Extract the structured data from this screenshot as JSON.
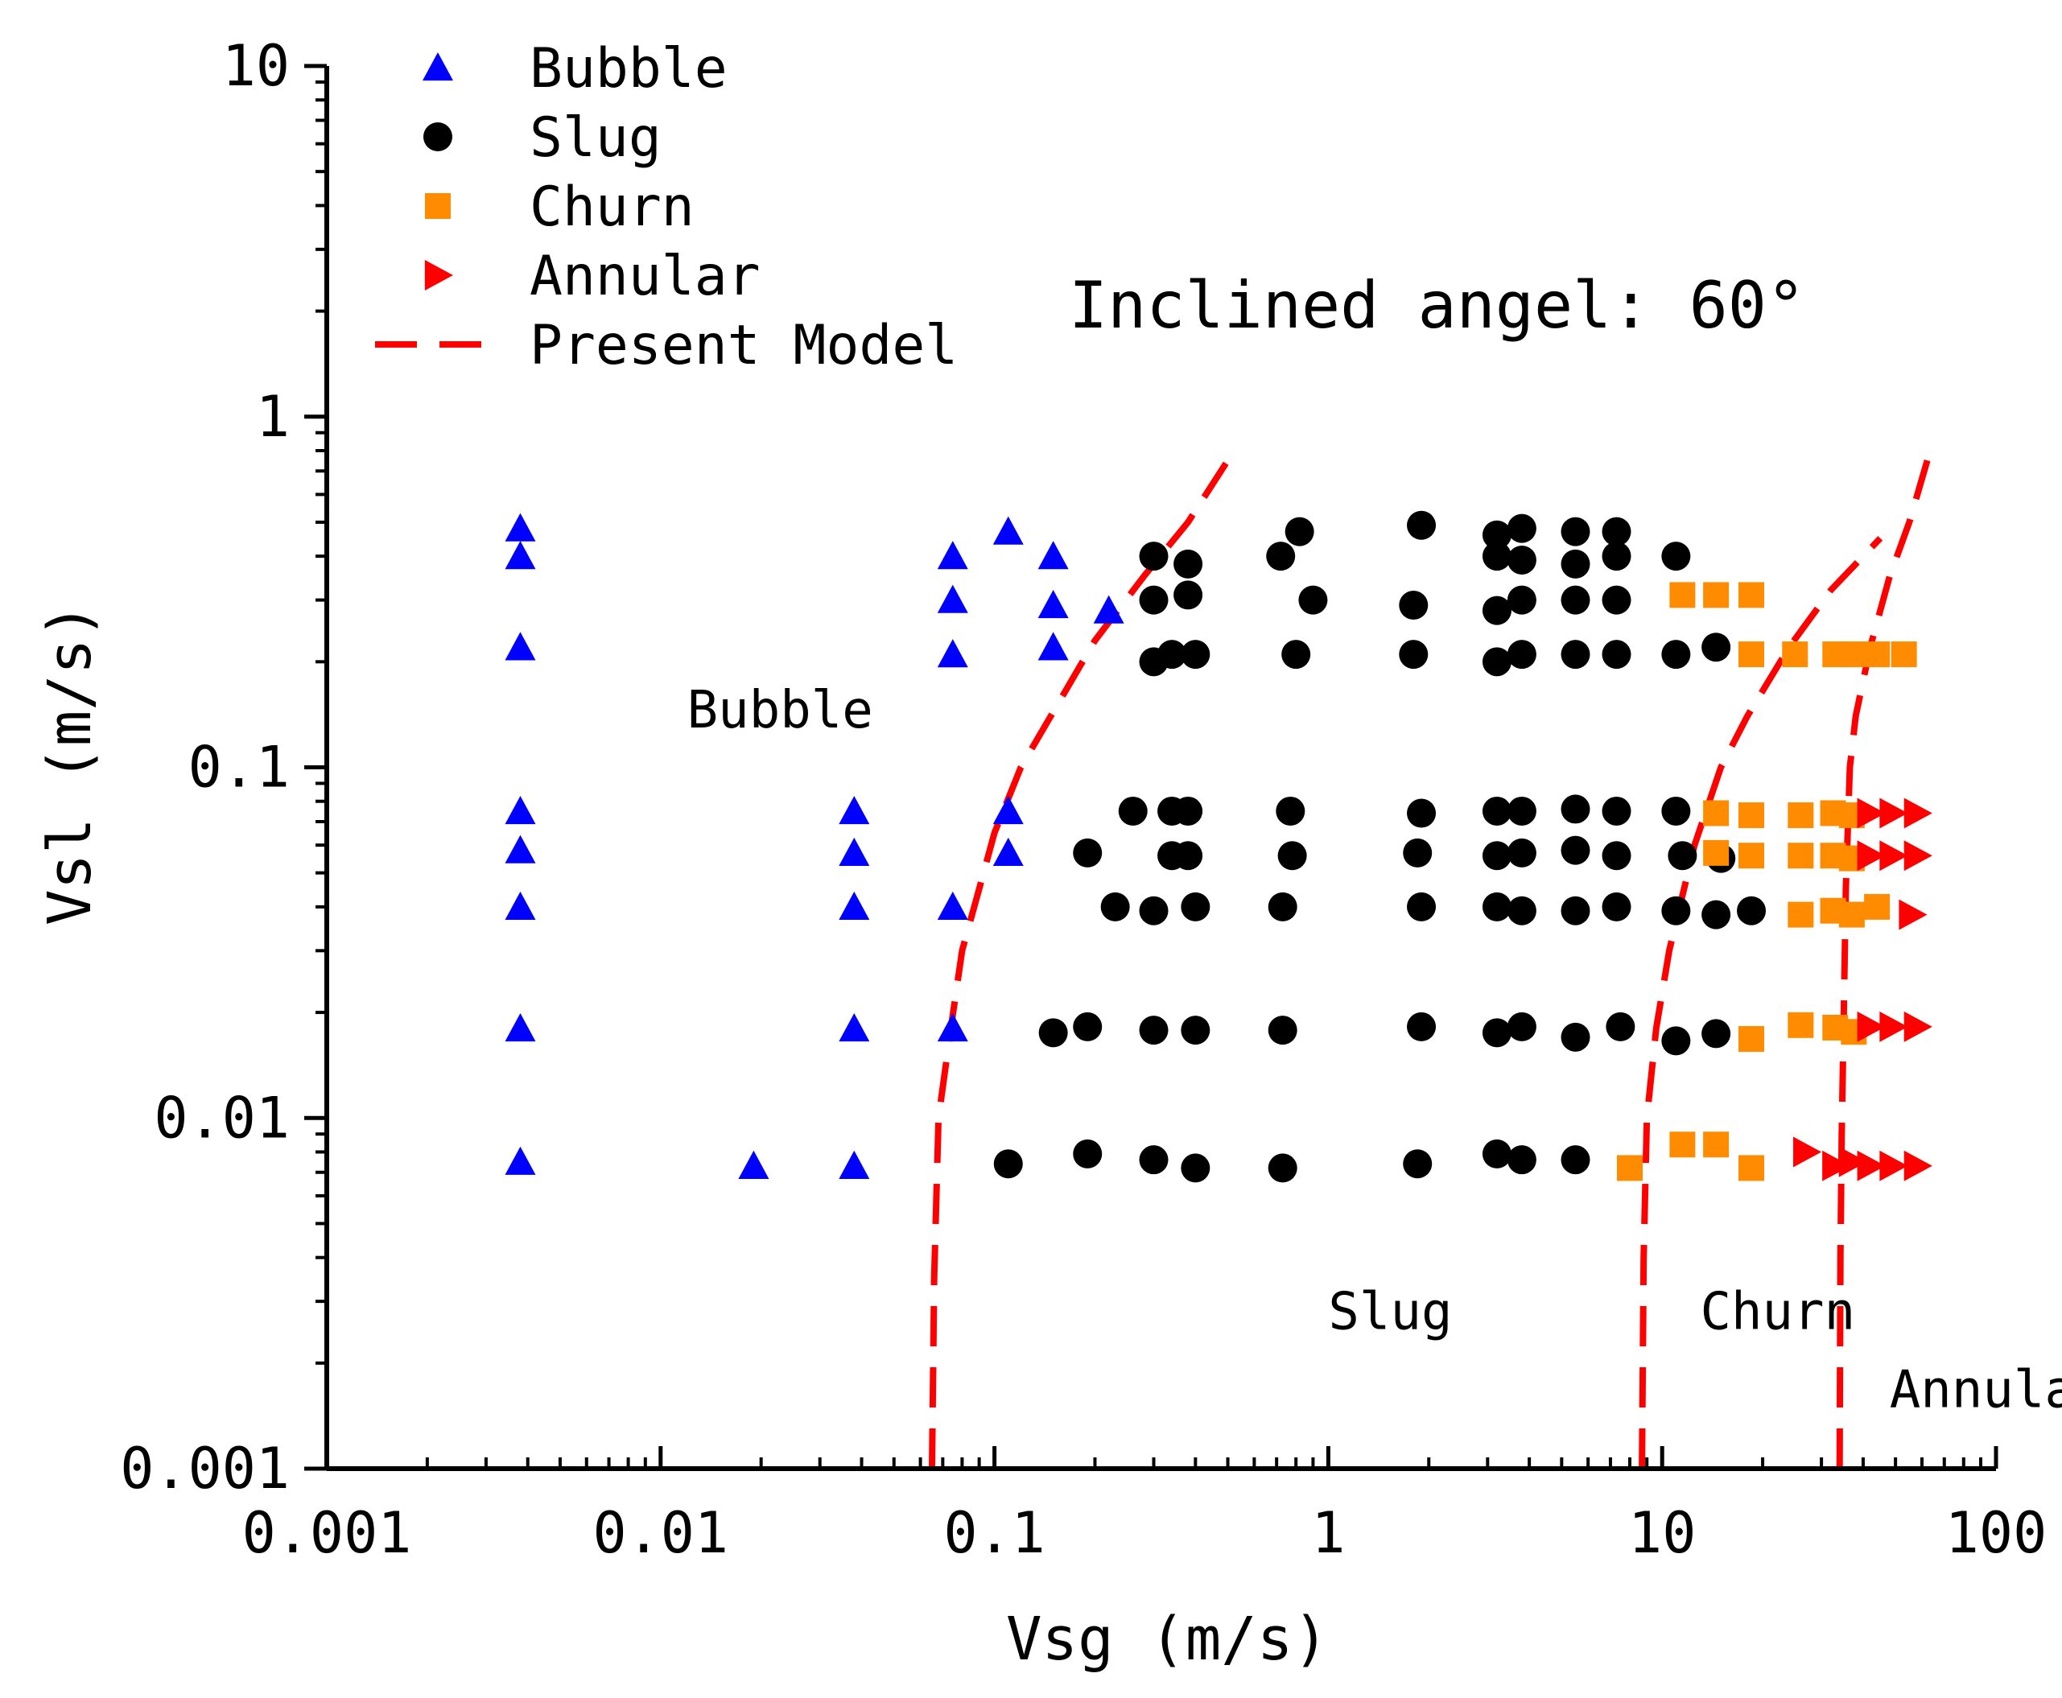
{
  "chart_data": {
    "type": "scatter",
    "title": "Inclined angel: 60°",
    "xlabel": "Vsg (m/s)",
    "ylabel": "Vsl (m/s)",
    "xscale": "log",
    "yscale": "log",
    "xlim": [
      0.001,
      100
    ],
    "ylim": [
      0.001,
      10
    ],
    "x_ticks": [
      {
        "value": 0.001,
        "label": "0.001"
      },
      {
        "value": 0.01,
        "label": "0.01"
      },
      {
        "value": 0.1,
        "label": "0.1"
      },
      {
        "value": 1,
        "label": "1"
      },
      {
        "value": 10,
        "label": "10"
      },
      {
        "value": 100,
        "label": "100"
      }
    ],
    "y_ticks": [
      {
        "value": 0.001,
        "label": "0.001"
      },
      {
        "value": 0.01,
        "label": "0.01"
      },
      {
        "value": 0.1,
        "label": "0.1"
      },
      {
        "value": 1,
        "label": "1"
      },
      {
        "value": 10,
        "label": "10"
      }
    ],
    "legend_position": "top-left",
    "series": [
      {
        "name": "Bubble",
        "marker": "triangle-up",
        "color": "#0000ff",
        "points": [
          [
            0.0038,
            0.48
          ],
          [
            0.0038,
            0.4
          ],
          [
            0.0038,
            0.22
          ],
          [
            0.0038,
            0.075
          ],
          [
            0.0038,
            0.058
          ],
          [
            0.0038,
            0.04
          ],
          [
            0.0038,
            0.018
          ],
          [
            0.0038,
            0.0075
          ],
          [
            0.019,
            0.0073
          ],
          [
            0.038,
            0.075
          ],
          [
            0.038,
            0.057
          ],
          [
            0.038,
            0.04
          ],
          [
            0.038,
            0.018
          ],
          [
            0.038,
            0.0073
          ],
          [
            0.075,
            0.4
          ],
          [
            0.075,
            0.3
          ],
          [
            0.075,
            0.21
          ],
          [
            0.075,
            0.04
          ],
          [
            0.075,
            0.018
          ],
          [
            0.11,
            0.47
          ],
          [
            0.11,
            0.075
          ],
          [
            0.11,
            0.057
          ],
          [
            0.15,
            0.4
          ],
          [
            0.15,
            0.29
          ],
          [
            0.15,
            0.22
          ],
          [
            0.22,
            0.28
          ]
        ]
      },
      {
        "name": "Slug",
        "marker": "circle",
        "color": "#000000",
        "points": [
          [
            0.3,
            0.4
          ],
          [
            0.38,
            0.38
          ],
          [
            0.3,
            0.3
          ],
          [
            0.38,
            0.31
          ],
          [
            0.3,
            0.2
          ],
          [
            0.34,
            0.21
          ],
          [
            0.4,
            0.21
          ],
          [
            0.72,
            0.4
          ],
          [
            0.82,
            0.47
          ],
          [
            0.9,
            0.3
          ],
          [
            0.8,
            0.21
          ],
          [
            1.9,
            0.49
          ],
          [
            1.8,
            0.29
          ],
          [
            1.8,
            0.21
          ],
          [
            3.2,
            0.46
          ],
          [
            3.8,
            0.48
          ],
          [
            3.2,
            0.4
          ],
          [
            3.8,
            0.39
          ],
          [
            3.2,
            0.28
          ],
          [
            3.8,
            0.3
          ],
          [
            3.2,
            0.2
          ],
          [
            3.8,
            0.21
          ],
          [
            5.5,
            0.47
          ],
          [
            7.3,
            0.47
          ],
          [
            5.5,
            0.38
          ],
          [
            7.3,
            0.4
          ],
          [
            5.5,
            0.3
          ],
          [
            7.3,
            0.3
          ],
          [
            5.5,
            0.21
          ],
          [
            7.3,
            0.21
          ],
          [
            11,
            0.4
          ],
          [
            11,
            0.21
          ],
          [
            14.5,
            0.22
          ],
          [
            0.26,
            0.075
          ],
          [
            0.34,
            0.075
          ],
          [
            0.38,
            0.075
          ],
          [
            0.77,
            0.075
          ],
          [
            1.9,
            0.074
          ],
          [
            3.2,
            0.075
          ],
          [
            3.8,
            0.075
          ],
          [
            5.5,
            0.076
          ],
          [
            7.3,
            0.075
          ],
          [
            11,
            0.075
          ],
          [
            0.19,
            0.057
          ],
          [
            0.34,
            0.056
          ],
          [
            0.38,
            0.056
          ],
          [
            0.78,
            0.056
          ],
          [
            1.85,
            0.057
          ],
          [
            3.2,
            0.056
          ],
          [
            3.8,
            0.057
          ],
          [
            5.5,
            0.058
          ],
          [
            7.3,
            0.056
          ],
          [
            11.5,
            0.056
          ],
          [
            15,
            0.055
          ],
          [
            0.23,
            0.04
          ],
          [
            0.3,
            0.039
          ],
          [
            0.4,
            0.04
          ],
          [
            0.73,
            0.04
          ],
          [
            1.9,
            0.04
          ],
          [
            3.2,
            0.04
          ],
          [
            3.8,
            0.039
          ],
          [
            5.5,
            0.039
          ],
          [
            7.3,
            0.04
          ],
          [
            11,
            0.039
          ],
          [
            14.5,
            0.038
          ],
          [
            18.5,
            0.039
          ],
          [
            0.15,
            0.0175
          ],
          [
            0.19,
            0.0182
          ],
          [
            0.3,
            0.0178
          ],
          [
            0.4,
            0.0178
          ],
          [
            0.73,
            0.0178
          ],
          [
            1.9,
            0.0182
          ],
          [
            3.2,
            0.0175
          ],
          [
            3.8,
            0.0182
          ],
          [
            5.5,
            0.017
          ],
          [
            7.5,
            0.0182
          ],
          [
            11,
            0.0166
          ],
          [
            14.5,
            0.0174
          ],
          [
            0.11,
            0.0074
          ],
          [
            0.19,
            0.0079
          ],
          [
            0.3,
            0.0076
          ],
          [
            0.4,
            0.0072
          ],
          [
            0.73,
            0.0072
          ],
          [
            1.85,
            0.0074
          ],
          [
            3.2,
            0.0079
          ],
          [
            3.8,
            0.0076
          ],
          [
            5.5,
            0.0076
          ]
        ]
      },
      {
        "name": "Churn",
        "marker": "square",
        "color": "#ff8c00",
        "points": [
          [
            11.5,
            0.31
          ],
          [
            14.5,
            0.31
          ],
          [
            18.5,
            0.31
          ],
          [
            18.5,
            0.21
          ],
          [
            25,
            0.21
          ],
          [
            33,
            0.21
          ],
          [
            37,
            0.21
          ],
          [
            44,
            0.21
          ],
          [
            53,
            0.21
          ],
          [
            14.5,
            0.074
          ],
          [
            18.5,
            0.073
          ],
          [
            26,
            0.073
          ],
          [
            32.5,
            0.074
          ],
          [
            37,
            0.073
          ],
          [
            14.5,
            0.057
          ],
          [
            18.5,
            0.056
          ],
          [
            26,
            0.056
          ],
          [
            32.5,
            0.056
          ],
          [
            37,
            0.055
          ],
          [
            26,
            0.038
          ],
          [
            32.5,
            0.039
          ],
          [
            37,
            0.038
          ],
          [
            44,
            0.04
          ],
          [
            18.5,
            0.0168
          ],
          [
            26,
            0.0184
          ],
          [
            33,
            0.0181
          ],
          [
            37.5,
            0.0176
          ],
          [
            8,
            0.0072
          ],
          [
            11.5,
            0.0084
          ],
          [
            14.5,
            0.0084
          ],
          [
            18.5,
            0.0072
          ]
        ]
      },
      {
        "name": "Annular",
        "marker": "triangle-right",
        "color": "#ff0000",
        "points": [
          [
            42,
            0.074
          ],
          [
            49,
            0.074
          ],
          [
            58,
            0.074
          ],
          [
            42,
            0.056
          ],
          [
            49,
            0.056
          ],
          [
            58,
            0.056
          ],
          [
            56,
            0.038
          ],
          [
            42,
            0.0182
          ],
          [
            49,
            0.0182
          ],
          [
            58,
            0.0182
          ],
          [
            27,
            0.008
          ],
          [
            33,
            0.0073
          ],
          [
            37,
            0.0075
          ],
          [
            42,
            0.0073
          ],
          [
            49,
            0.0073
          ],
          [
            58,
            0.0073
          ]
        ]
      }
    ],
    "model_lines": {
      "name": "Present Model",
      "style": "dashed",
      "color": "#ff0000",
      "curves": [
        [
          [
            0.065,
            0.001
          ],
          [
            0.066,
            0.0035
          ],
          [
            0.068,
            0.01
          ],
          [
            0.074,
            0.018
          ],
          [
            0.08,
            0.03
          ],
          [
            0.09,
            0.045
          ],
          [
            0.1,
            0.065
          ],
          [
            0.12,
            0.1
          ],
          [
            0.16,
            0.16
          ],
          [
            0.2,
            0.23
          ],
          [
            0.28,
            0.35
          ],
          [
            0.38,
            0.5
          ],
          [
            0.5,
            0.75
          ]
        ],
        [
          [
            8.7,
            0.001
          ],
          [
            8.8,
            0.004
          ],
          [
            9,
            0.01
          ],
          [
            9.6,
            0.018
          ],
          [
            10.5,
            0.03
          ],
          [
            12.5,
            0.06
          ],
          [
            15,
            0.1
          ],
          [
            18,
            0.14
          ],
          [
            24,
            0.22
          ],
          [
            32,
            0.32
          ],
          [
            45,
            0.45
          ]
        ],
        [
          [
            34,
            0.001
          ],
          [
            34.2,
            0.004
          ],
          [
            34.5,
            0.009
          ],
          [
            35,
            0.02
          ],
          [
            35.5,
            0.045
          ],
          [
            36.5,
            0.1
          ],
          [
            38,
            0.14
          ],
          [
            42,
            0.22
          ],
          [
            48,
            0.35
          ],
          [
            55,
            0.5
          ],
          [
            63,
            0.78
          ]
        ]
      ]
    },
    "region_labels": [
      {
        "text": "Bubble",
        "x": 0.012,
        "y": 0.13
      },
      {
        "text": "Slug",
        "x": 1.0,
        "y": 0.0025
      },
      {
        "text": "Churn",
        "x": 13,
        "y": 0.0025
      },
      {
        "text": "Annular",
        "x": 48,
        "y": 0.0015
      }
    ]
  }
}
